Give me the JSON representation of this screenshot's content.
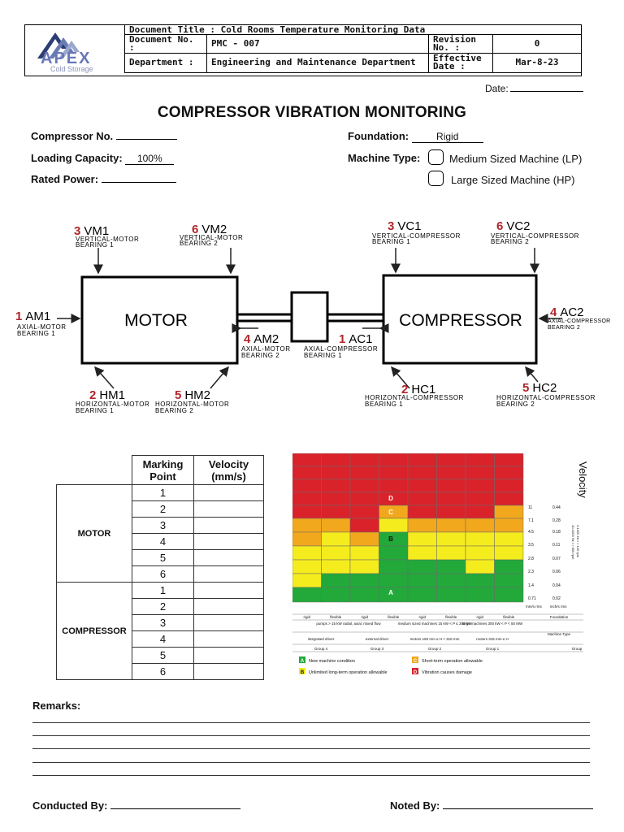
{
  "header": {
    "logo_text": "APEX",
    "logo_sub": "Cold Storage",
    "document_title_label": "Document Title :",
    "document_title": "Cold Rooms Temperature Monitoring Data",
    "document_no_label": "Document No. :",
    "document_no": "PMC - 007",
    "revision_no_label": "Revision No. :",
    "revision_no": "0",
    "department_label": "Department :",
    "department": "Engineering and Maintenance Department",
    "effective_date_label": "Effective Date :",
    "effective_date": "Mar-8-23"
  },
  "date_label": "Date:",
  "page_title": "COMPRESSOR VIBRATION MONITORING",
  "form": {
    "compressor_no_label": "Compressor No.",
    "compressor_no": "",
    "loading_capacity_label": "Loading Capacity:",
    "loading_capacity": "100%",
    "rated_power_label": "Rated Power:",
    "rated_power": "",
    "foundation_label": "Foundation:",
    "foundation": "Rigid",
    "machine_type_label": "Machine Type:",
    "machine_types": [
      "Medium Sized Machine (LP)",
      "Large Sized Machine (HP)"
    ]
  },
  "diagram": {
    "motor_label": "MOTOR",
    "compressor_label": "COMPRESSOR",
    "points": [
      {
        "num": "3",
        "code": "VM1",
        "desc1": "VERTICAL-MOTOR",
        "desc2": "BEARING 1"
      },
      {
        "num": "6",
        "code": "VM2",
        "desc1": "VERTICAL-MOTOR",
        "desc2": "BEARING 2"
      },
      {
        "num": "3",
        "code": "VC1",
        "desc1": "VERTICAL-COMPRESSOR",
        "desc2": "BEARING 1"
      },
      {
        "num": "6",
        "code": "VC2",
        "desc1": "VERTICAL-COMPRESSOR",
        "desc2": "BEARING 2"
      },
      {
        "num": "1",
        "code": "AM1",
        "desc1": "AXIAL-MOTOR",
        "desc2": "BEARING 1"
      },
      {
        "num": "4",
        "code": "AM2",
        "desc1": "AXIAL-MOTOR",
        "desc2": "BEARING 2"
      },
      {
        "num": "1",
        "code": "AC1",
        "desc1": "AXIAL-COMPRESSOR",
        "desc2": "BEARING 1"
      },
      {
        "num": "4",
        "code": "AC2",
        "desc1": "AXIAL-COMPRESSOR",
        "desc2": "BEARING 2"
      },
      {
        "num": "2",
        "code": "HM1",
        "desc1": "HORIZONTAL-MOTOR",
        "desc2": "BEARING 1"
      },
      {
        "num": "5",
        "code": "HM2",
        "desc1": "HORIZONTAL-MOTOR",
        "desc2": "BEARING 2"
      },
      {
        "num": "2",
        "code": "HC1",
        "desc1": "HORIZONTAL-COMPRESSOR",
        "desc2": "BEARING 1"
      },
      {
        "num": "5",
        "code": "HC2",
        "desc1": "HORIZONTAL-COMPRESSOR",
        "desc2": "BEARING 2"
      }
    ]
  },
  "table": {
    "col_marking": [
      "Marking",
      "Point"
    ],
    "col_velocity": [
      "Velocity",
      "(mm/s)"
    ],
    "groups": [
      {
        "name": "MOTOR",
        "points": [
          "1",
          "2",
          "3",
          "4",
          "5",
          "6"
        ]
      },
      {
        "name": "COMPRESSOR",
        "points": [
          "1",
          "2",
          "3",
          "4",
          "5",
          "6"
        ]
      }
    ]
  },
  "severity_chart": {
    "title": "Velocity",
    "mm_values": [
      "11",
      "7.1",
      "4.5",
      "3.5",
      "2.8",
      "2.3",
      "1.4",
      "0.71"
    ],
    "in_values": [
      "0.44",
      "0.28",
      "0.18",
      "0.11",
      "0.07",
      "0.06",
      "0.04",
      "0.02"
    ],
    "unit_mm": "mm/s rms",
    "unit_in": "inch/s rms",
    "freq_note_1": "10-1000 Hz r > 600 rpm",
    "freq_note_2": "2-1000 Hz r > 120 rpm",
    "zone_labels": [
      "A",
      "B",
      "C",
      "D"
    ],
    "foundation_row": [
      "rigid",
      "flexible",
      "rigid",
      "flexible",
      "rigid",
      "flexible",
      "rigid",
      "flexible"
    ],
    "foundation_label": "Foundation",
    "machine_type_groups": [
      "pumps > 15 kW radial, axial, mixed flow",
      "medium sized machines 15 kW < P ≤ 300 kW",
      "large machines 300 kW < P < 50 MW"
    ],
    "driver_row": [
      "integrated driver",
      "external driver",
      "motors 160 mm ≤ H < 315 mm",
      "motors 315 mm ≤ H"
    ],
    "machine_type_label": "Machine Type",
    "group_row": [
      "Group 4",
      "Group 3",
      "Group 2",
      "Group 1"
    ],
    "group_label": "Group",
    "legend": [
      {
        "key": "A",
        "text": "New machine condition",
        "color": "#22a93a"
      },
      {
        "key": "B",
        "text": "Unlimited long-term operation allowable",
        "color": "#f5ec1e"
      },
      {
        "key": "C",
        "text": "Short-term operation allowable",
        "color": "#f2a81d"
      },
      {
        "key": "D",
        "text": "Vibration causes damage",
        "color": "#d9222a"
      }
    ]
  },
  "remarks_label": "Remarks:",
  "conducted_by_label": "Conducted By:",
  "noted_by_label": "Noted By:"
}
